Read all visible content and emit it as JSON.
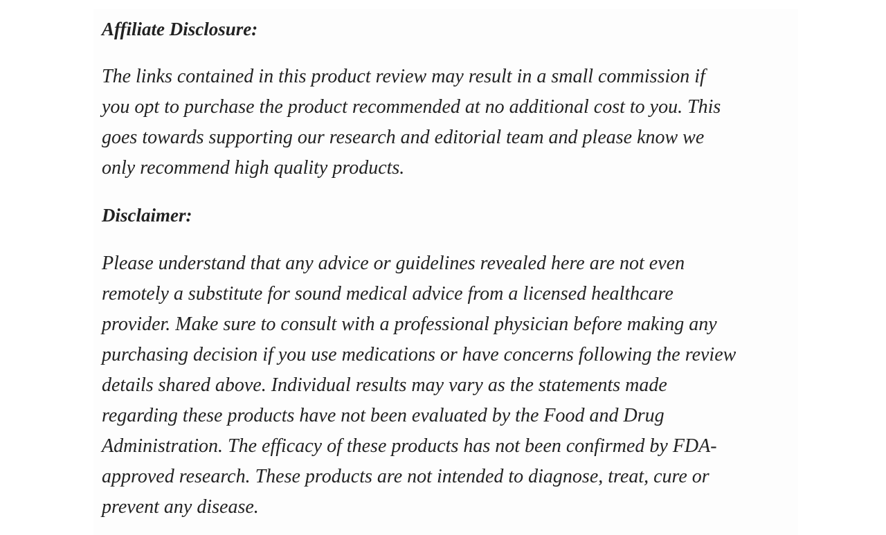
{
  "affiliate": {
    "heading": "Affiliate Disclosure:",
    "lines": [
      "The links contained in this product review may result in a small commission if",
      "you opt to purchase the product recommended at no additional cost to you. This",
      "goes towards supporting our research and editorial team and please know we",
      "only recommend high quality products."
    ]
  },
  "disclaimer": {
    "heading": "Disclaimer:",
    "lines": [
      "Please understand that any advice or guidelines revealed here are not even",
      "remotely a substitute for sound medical advice from a licensed healthcare",
      "provider. Make sure to consult with a professional physician before making any",
      "purchasing decision if you use medications or have concerns following the review",
      "details shared above. Individual results may vary as the statements made",
      "regarding these products have not been evaluated by the Food and Drug",
      "Administration. The efficacy of these products has not been confirmed by FDA-",
      "approved research. These products are not intended to diagnose, treat, cure or",
      "prevent any disease."
    ]
  }
}
